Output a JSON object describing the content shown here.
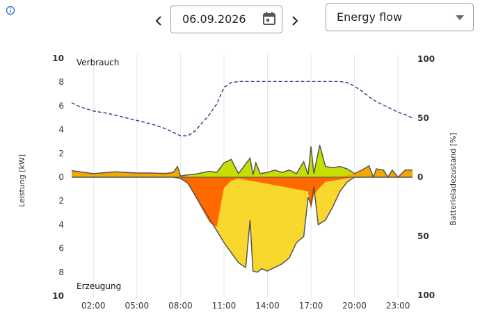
{
  "controls": {
    "date": "06.09.2026",
    "view_select": "Energy flow",
    "icons": {
      "info": "info-icon",
      "prev": "chevron-left-icon",
      "next": "chevron-right-icon",
      "calendar": "calendar-icon",
      "dropdown": "caret-down-icon"
    }
  },
  "chart_data": {
    "type": "area",
    "xlabel": "",
    "ylabel": "Leistung [kW]",
    "y2label": "Batterieladezustand [%]",
    "section_top": "Verbrauch",
    "section_bottom": "Erzeugung",
    "x_ticks": [
      "02:00",
      "05:00",
      "08:00",
      "11:00",
      "14:00",
      "17:00",
      "20:00",
      "23:00"
    ],
    "x_range_hours": [
      0.5,
      24
    ],
    "y_ticks_top": [
      "10",
      "8",
      "6",
      "4",
      "2",
      "0"
    ],
    "y_ticks_bottom": [
      "2",
      "4",
      "6",
      "8",
      "10"
    ],
    "y2_ticks": [
      "100",
      "50",
      "0",
      "50",
      "100"
    ],
    "ylim_kw": [
      -10,
      10
    ],
    "colors": {
      "grid_import": "#f5a800",
      "battery_charge_or_direct": "#c5df00",
      "pv_self": "#f9d82e",
      "pv_export": "#ff6a00",
      "soc_line": "#33337a",
      "outline": "#555555"
    },
    "consumption_kw": {
      "x": [
        0.5,
        2,
        3.5,
        5,
        6,
        7,
        7.5,
        7.8,
        8,
        8.5,
        9,
        10,
        10.5,
        11,
        11.5,
        12,
        12.8,
        13,
        13.2,
        13.5,
        14,
        14.5,
        15,
        15.5,
        16,
        16.5,
        16.8,
        17,
        17.2,
        17.6,
        18,
        18.5,
        19,
        19.5,
        20,
        20.5,
        21,
        21.3,
        21.5,
        22,
        22.3,
        22.6,
        23,
        23.5,
        24
      ],
      "values": [
        0.55,
        0.3,
        0.45,
        0.35,
        0.35,
        0.3,
        0.4,
        0.9,
        0.1,
        0.2,
        0.25,
        0.5,
        0.4,
        1.2,
        1.5,
        0.3,
        1.6,
        0.2,
        1.2,
        0.3,
        0.4,
        0.6,
        0.4,
        0.6,
        0.3,
        1.3,
        0.2,
        2.6,
        0.3,
        2.7,
        0.9,
        0.8,
        0.9,
        0.7,
        0.3,
        0.6,
        0.95,
        0.0,
        0.7,
        0.6,
        0.0,
        0.6,
        0.0,
        0.6,
        0.6
      ]
    },
    "grid_import_kw": {
      "x": [
        0.5,
        2,
        3.5,
        5,
        6,
        7.5,
        7.8,
        8,
        9,
        10,
        11,
        12,
        13,
        14,
        15,
        16,
        17,
        18,
        19,
        20,
        20.5,
        21,
        21.3,
        21.5,
        22,
        22.3,
        22.6,
        23,
        23.5,
        24
      ],
      "values": [
        0.55,
        0.3,
        0.45,
        0.35,
        0.35,
        0.4,
        0.9,
        0.1,
        0,
        0,
        0,
        0,
        0,
        0,
        0,
        0,
        0,
        0,
        0,
        0.3,
        0.6,
        0.95,
        0.0,
        0.7,
        0.6,
        0.0,
        0.6,
        0.0,
        0.6,
        0.6
      ]
    },
    "generation_kw": {
      "x": [
        0.5,
        7.5,
        8,
        8.5,
        9,
        10,
        11,
        12,
        12.5,
        12.8,
        13,
        13.3,
        13.6,
        14,
        14.5,
        15,
        15.5,
        16,
        16.5,
        16.8,
        17,
        17.2,
        17.5,
        18,
        18.5,
        19,
        19.5,
        20,
        24
      ],
      "values": [
        0,
        0,
        -0.1,
        -0.5,
        -1.5,
        -3.5,
        -5.5,
        -7.2,
        -7.6,
        -3.6,
        -7.9,
        -8,
        -7.7,
        -7.9,
        -7.6,
        -7.3,
        -6.8,
        -5.5,
        -5.0,
        -1.7,
        -2.3,
        -0.8,
        -4.0,
        -3.6,
        -2.5,
        -1.2,
        -0.4,
        0,
        0
      ]
    },
    "pv_export_kw": {
      "x": [
        8,
        8.5,
        9,
        10,
        10.5,
        11,
        11.5,
        12,
        16.8,
        17,
        17.2,
        17.5,
        18,
        20
      ],
      "values": [
        -0.05,
        -0.5,
        -1.6,
        -3.8,
        -4.2,
        -0.9,
        -0.3,
        -0.1,
        -1.2,
        -2.7,
        -1.5,
        -1.0,
        -0.4,
        0
      ]
    },
    "battery_soc_percent": {
      "x": [
        0.5,
        1,
        2,
        3,
        4,
        5,
        6,
        7,
        7.5,
        8,
        8.5,
        9,
        9.5,
        10,
        10.5,
        11,
        11.5,
        12,
        13,
        14,
        15,
        16,
        17,
        18,
        19,
        19.5,
        20,
        20.5,
        21,
        21.5,
        22,
        22.5,
        23,
        23.5,
        24
      ],
      "values": [
        63,
        60,
        56,
        54,
        51,
        48,
        45,
        41,
        38,
        35,
        35,
        39,
        46,
        53,
        62,
        76,
        80,
        81,
        81,
        81,
        81,
        81,
        81,
        81,
        81,
        80,
        77,
        73,
        68,
        64,
        61,
        58,
        55,
        53,
        50
      ]
    }
  }
}
